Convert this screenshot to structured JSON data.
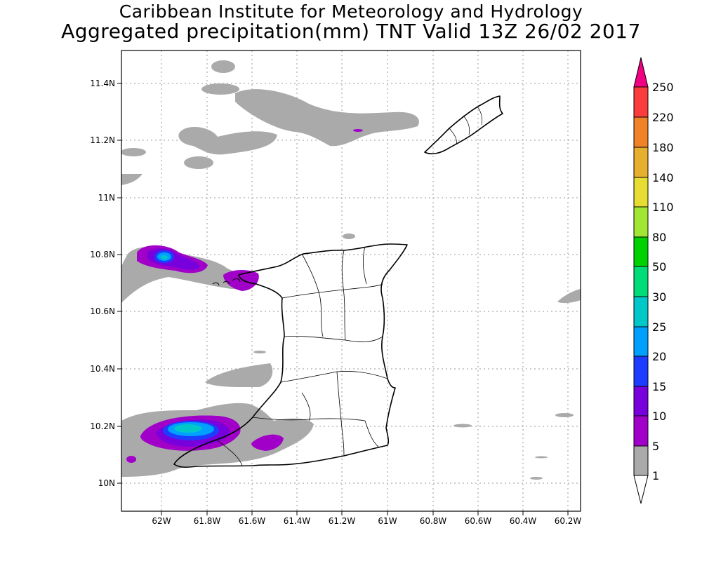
{
  "header": {
    "institute": "Caribbean Institute for Meteorology and Hydrology",
    "product": "Aggregated precipitation(mm) TNT Valid 13Z 26/02 2017"
  },
  "map": {
    "region": "Trinidad and Tobago",
    "lon_ticks": [
      "62W",
      "61.8W",
      "61.6W",
      "61.4W",
      "61.2W",
      "61W",
      "60.8W",
      "60.6W",
      "60.4W",
      "60.2W"
    ],
    "lat_ticks": [
      "11.4N",
      "11.2N",
      "11N",
      "10.8N",
      "10.6N",
      "10.4N",
      "10.2N",
      "10N"
    ],
    "grid": "dotted"
  },
  "colorbar": {
    "labels": [
      "1",
      "5",
      "10",
      "15",
      "20",
      "25",
      "30",
      "50",
      "80",
      "110",
      "140",
      "180",
      "220",
      "250"
    ],
    "colors": {
      "below": "#ffffff",
      "c1": "#aaaaaa",
      "c5": "#a000c8",
      "c10": "#7800dc",
      "c15": "#1e3cff",
      "c20": "#00a0ff",
      "c25": "#00c8c8",
      "c30": "#00dc78",
      "c50": "#00d200",
      "c80": "#a0e632",
      "c110": "#e6dc32",
      "c140": "#e6af2d",
      "c180": "#f08228",
      "c220": "#fa3c3c",
      "c250": "#f00082"
    }
  }
}
